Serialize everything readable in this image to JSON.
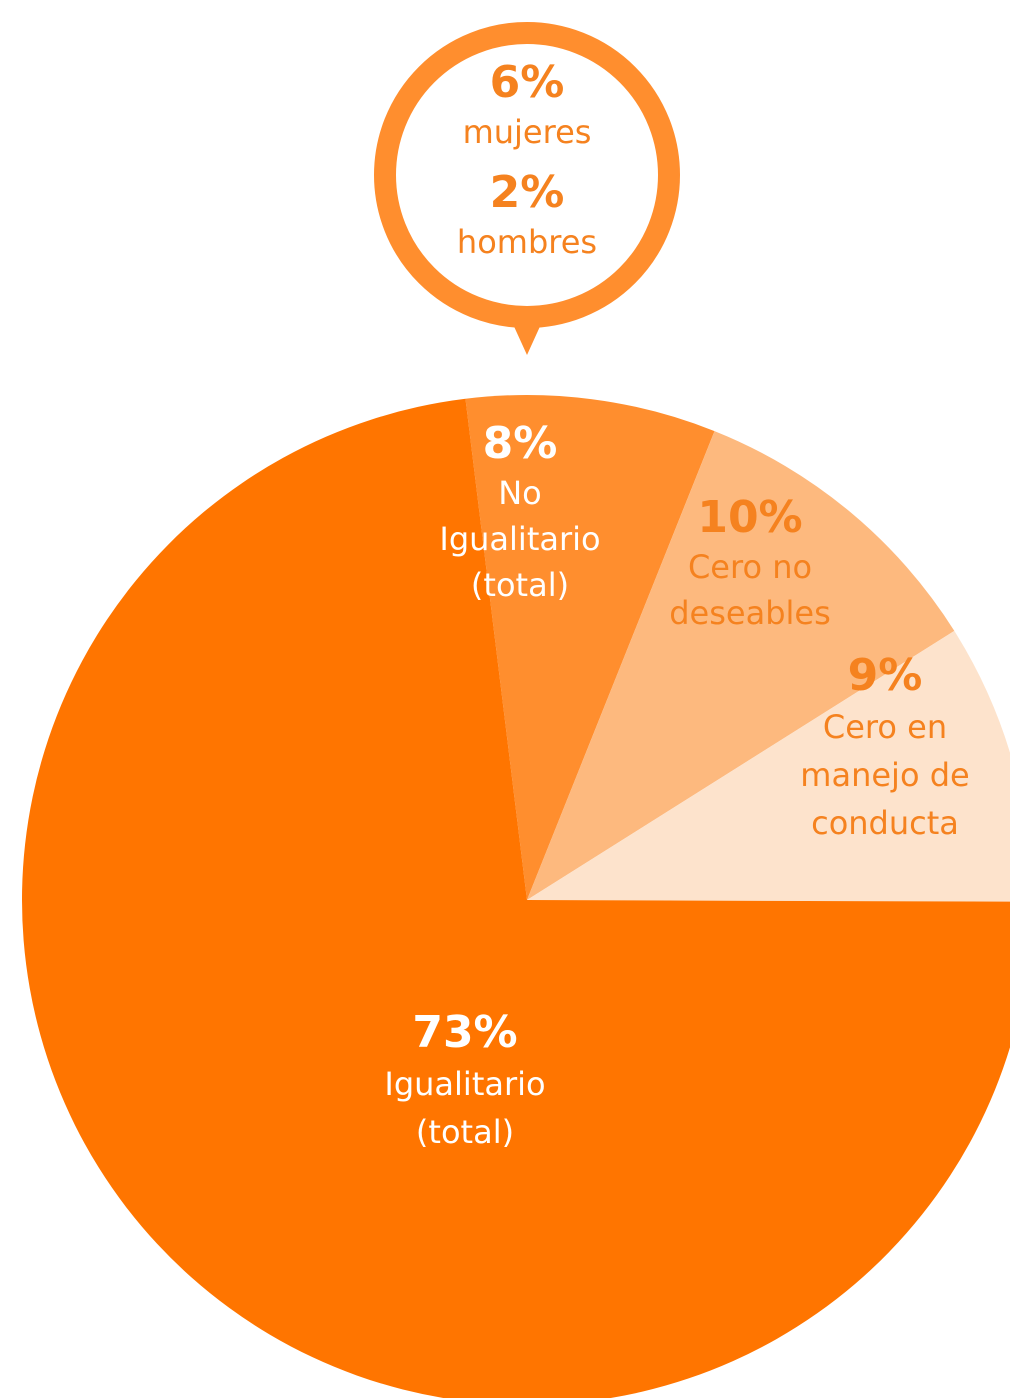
{
  "chart_data": {
    "type": "pie",
    "slices": [
      {
        "label": "No\nIgualitario\n(total)",
        "value": 8,
        "value_label": "8%",
        "color": "#FF8E2E",
        "text_color": "#FFFFFF"
      },
      {
        "label": "Cero no\ndeseables",
        "value": 10,
        "value_label": "10%",
        "color": "#FDB97E",
        "text_color": "#F5821F"
      },
      {
        "label": "Cero en\nmanejo de\nconducta",
        "value": 9,
        "value_label": "9%",
        "color": "#FDE3CC",
        "text_color": "#F5821F"
      },
      {
        "label": "Igualitario\n(total)",
        "value": 73,
        "value_label": "73%",
        "color": "#FF7500",
        "text_color": "#FFFFFF"
      }
    ],
    "callout": {
      "points_to": "No Igualitario (total)",
      "lines": [
        {
          "value": "6%",
          "label": "mujeres"
        },
        {
          "value": "2%",
          "label": "hombres"
        }
      ],
      "color": "#FF8E2E"
    }
  }
}
